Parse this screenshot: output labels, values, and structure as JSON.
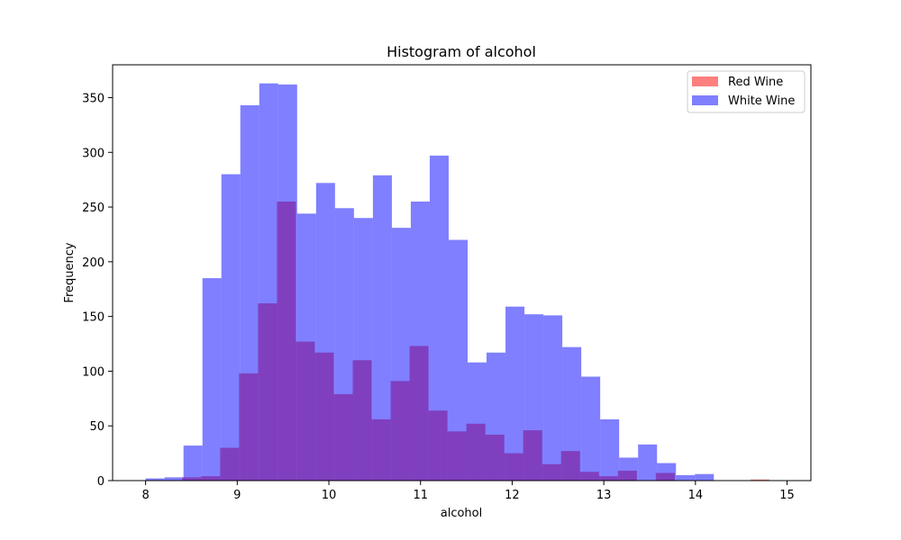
{
  "chart_data": {
    "type": "bar",
    "title": "Histogram of alcohol",
    "xlabel": "alcohol",
    "ylabel": "Frequency",
    "xlim": [
      7.64,
      15.26
    ],
    "ylim": [
      0,
      380
    ],
    "xticks": [
      8,
      9,
      10,
      11,
      12,
      13,
      14,
      15
    ],
    "yticks": [
      0,
      50,
      100,
      150,
      200,
      250,
      300,
      350
    ],
    "grid": false,
    "legend": "top-right",
    "series": [
      {
        "name": "Red Wine",
        "color": "#ff0000",
        "opacity": 0.5,
        "bin_start": 8.4,
        "bin_width": 0.2067,
        "values": [
          3,
          4,
          30,
          98,
          162,
          255,
          127,
          117,
          79,
          110,
          56,
          91,
          123,
          64,
          45,
          52,
          42,
          25,
          46,
          15,
          27,
          8,
          4,
          9,
          0,
          7,
          0,
          0,
          0,
          0,
          1
        ]
      },
      {
        "name": "White Wine",
        "color": "#0000ff",
        "opacity": 0.5,
        "bin_start": 8.0,
        "bin_width": 0.2067,
        "values": [
          2,
          3,
          32,
          185,
          280,
          343,
          363,
          362,
          244,
          272,
          249,
          240,
          279,
          231,
          255,
          297,
          220,
          108,
          117,
          159,
          152,
          151,
          122,
          95,
          56,
          21,
          33,
          16,
          5,
          6
        ]
      }
    ]
  }
}
